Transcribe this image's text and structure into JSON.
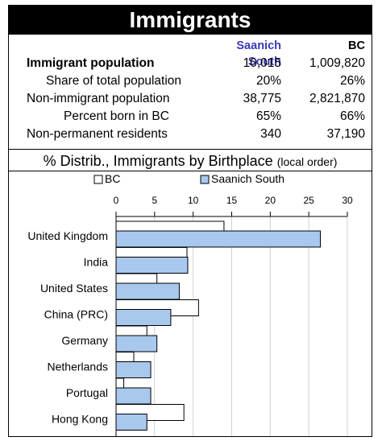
{
  "title": "Immigrants",
  "table": {
    "col1": "Saanich South",
    "col2": "BC",
    "rows": [
      {
        "label": "Immigrant population",
        "v1": "10,015",
        "v2": "1,009,820",
        "bold": true
      },
      {
        "label": "Share of total population",
        "v1": "20%",
        "v2": "26%",
        "indent": true
      },
      {
        "label": "Non-immigrant population",
        "v1": "38,775",
        "v2": "2,821,870"
      },
      {
        "label": "Percent born in BC",
        "v1": "65%",
        "v2": "66%",
        "indent": true
      },
      {
        "label": "Non-permanent residents",
        "v1": "340",
        "v2": "37,190"
      }
    ]
  },
  "subtitle": {
    "main": "% Distrib., Immigrants by Birthplace",
    "note": "(local order)"
  },
  "colors": {
    "saanich": "#a8c8ee",
    "bc": "#ffffff",
    "stroke": "#000000"
  },
  "chart_data": {
    "type": "bar",
    "orientation": "horizontal",
    "categories": [
      "United Kingdom",
      "India",
      "United States",
      "China (PRC)",
      "Germany",
      "Netherlands",
      "Portugal",
      "Hong Kong"
    ],
    "series": [
      {
        "name": "BC",
        "values": [
          14,
          9.2,
          5.3,
          10.7,
          4.0,
          2.3,
          1.0,
          8.8
        ]
      },
      {
        "name": "Saanich South",
        "values": [
          26.5,
          9.3,
          8.2,
          7.1,
          5.3,
          4.5,
          4.5,
          4.0
        ]
      }
    ],
    "xlim": [
      0,
      30
    ],
    "ticks": [
      "0",
      "5",
      "10",
      "15",
      "20",
      "25",
      "30"
    ],
    "legend_position": "top",
    "grid": true
  }
}
